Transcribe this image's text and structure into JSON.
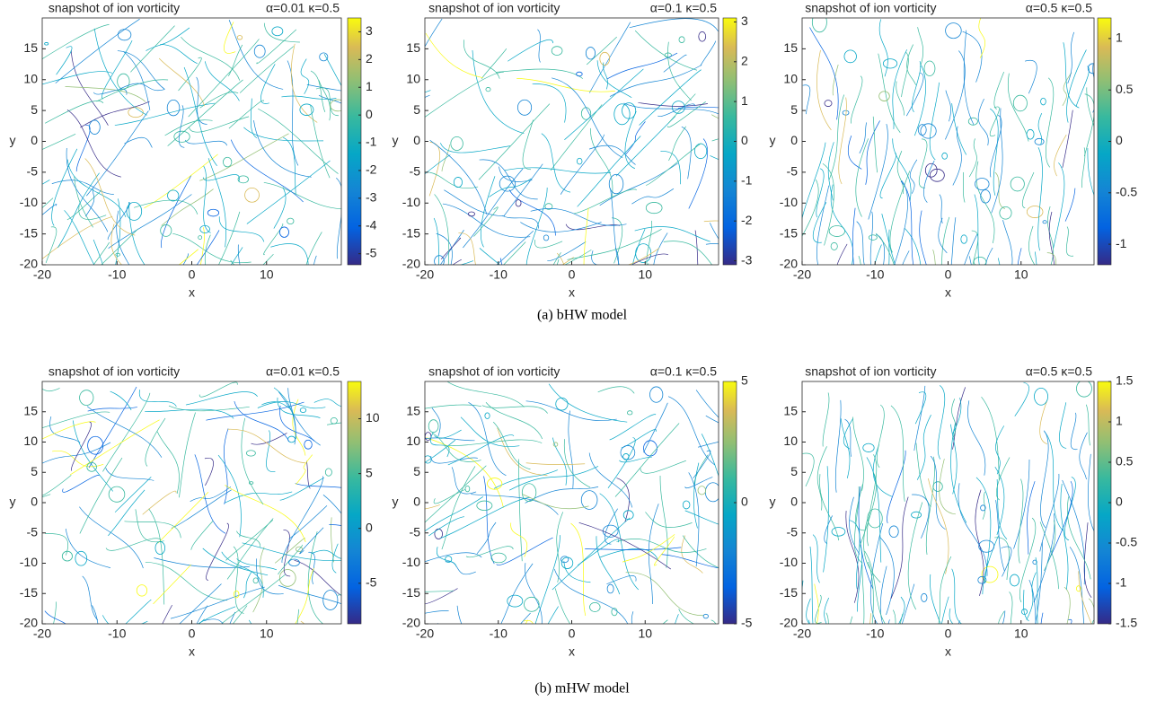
{
  "captions": [
    "(a) bHW model",
    "(b) mHW model"
  ],
  "chart_data": [
    {
      "type": "contour",
      "title": "snapshot of ion vorticity",
      "annotation": "α=0.01 κ=0.5",
      "xlabel": "x",
      "ylabel": "y",
      "xlim": [
        -20,
        20
      ],
      "ylim": [
        -20,
        20
      ],
      "xticks": [
        -20,
        -10,
        0,
        10
      ],
      "yticks": [
        -20,
        -15,
        -10,
        -5,
        0,
        5,
        10,
        15
      ],
      "clim": [
        -5.4,
        3.5
      ],
      "cticks": [
        -5,
        -4,
        -3,
        -2,
        -1,
        0,
        1,
        2,
        3
      ]
    },
    {
      "type": "contour",
      "title": "snapshot of ion vorticity",
      "annotation": "α=0.1 κ=0.5",
      "xlabel": "x",
      "ylabel": "y",
      "xlim": [
        -20,
        20
      ],
      "ylim": [
        -20,
        20
      ],
      "xticks": [
        -20,
        -10,
        0,
        10
      ],
      "yticks": [
        -20,
        -15,
        -10,
        -5,
        0,
        5,
        10,
        15
      ],
      "clim": [
        -3.1,
        3.1
      ],
      "cticks": [
        -3,
        -2,
        -1,
        0,
        1,
        2,
        3
      ]
    },
    {
      "type": "contour",
      "title": "snapshot of ion vorticity",
      "annotation": "α=0.5 κ=0.5",
      "xlabel": "x",
      "ylabel": "y",
      "xlim": [
        -20,
        20
      ],
      "ylim": [
        -20,
        20
      ],
      "xticks": [
        -20,
        -10,
        0,
        10
      ],
      "yticks": [
        -20,
        -15,
        -10,
        -5,
        0,
        5,
        10,
        15
      ],
      "clim": [
        -1.2,
        1.2
      ],
      "cticks": [
        -1,
        -0.5,
        0,
        0.5,
        1
      ]
    },
    {
      "type": "contour",
      "title": "snapshot of ion vorticity",
      "annotation": "α=0.01 κ=0.5",
      "xlabel": "x",
      "ylabel": "y",
      "xlim": [
        -20,
        20
      ],
      "ylim": [
        -20,
        20
      ],
      "xticks": [
        -20,
        -10,
        0,
        10
      ],
      "yticks": [
        -20,
        -15,
        -10,
        -5,
        0,
        5,
        10,
        15
      ],
      "clim": [
        -8.7,
        13.4
      ],
      "cticks": [
        -5,
        0,
        5,
        10
      ]
    },
    {
      "type": "contour",
      "title": "snapshot of ion vorticity",
      "annotation": "α=0.1 κ=0.5",
      "xlabel": "x",
      "ylabel": "y",
      "xlim": [
        -20,
        20
      ],
      "ylim": [
        -20,
        20
      ],
      "xticks": [
        -20,
        -10,
        0,
        10
      ],
      "yticks": [
        -20,
        -15,
        -10,
        -5,
        0,
        5,
        10,
        15
      ],
      "clim": [
        -5,
        5
      ],
      "cticks": [
        -5,
        0,
        5
      ]
    },
    {
      "type": "contour",
      "title": "snapshot of ion vorticity",
      "annotation": "α=0.5 κ=0.5",
      "xlabel": "x",
      "ylabel": "y",
      "xlim": [
        -20,
        20
      ],
      "ylim": [
        -20,
        20
      ],
      "xticks": [
        -20,
        -10,
        0,
        10
      ],
      "yticks": [
        -20,
        -15,
        -10,
        -5,
        0,
        5,
        10,
        15
      ],
      "clim": [
        -1.5,
        1.5
      ],
      "cticks": [
        -1.5,
        -1,
        -0.5,
        0,
        0.5,
        1,
        1.5
      ]
    }
  ]
}
